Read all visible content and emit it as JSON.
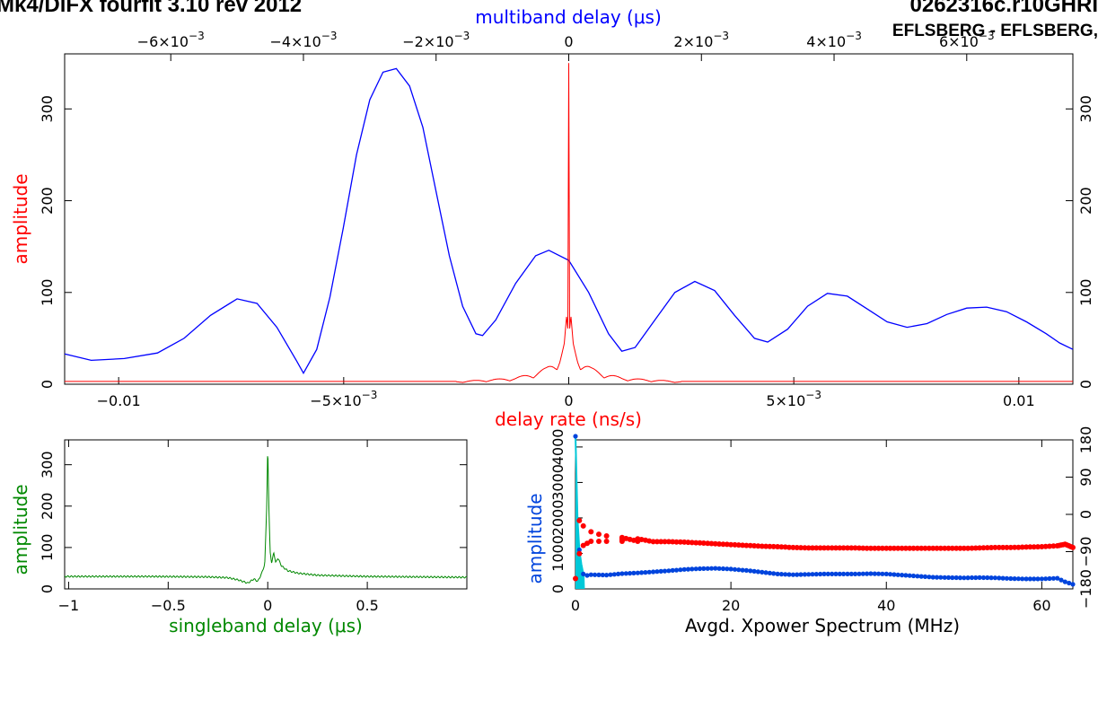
{
  "header": {
    "left_title": "Mk4/DiFX fourfit 3.10 rev 2012",
    "right_title": "0262316c.r10GHRI",
    "right_subtitle": "EFLSBERG - EFLSBERG,"
  },
  "colors": {
    "rate": "#ff0000",
    "mbd": "#0000ff",
    "sbd": "#008800",
    "xpower_amp": "#0044dd",
    "xpower_amp_fill": "#00c8d8",
    "xpower_phase": "#ff0000",
    "axis": "#000000"
  },
  "chart_data": [
    {
      "id": "delay_rate_multiband",
      "type": "line",
      "xlabel": "delay rate (ns/s)",
      "x2label": "multiband delay (μs)",
      "ylabel": "amplitude",
      "xlim": [
        -0.0112,
        0.0112
      ],
      "x2lim": [
        -0.0076,
        0.0076
      ],
      "ylim": [
        0,
        360
      ],
      "x_ticks": [
        {
          "v": -0.01,
          "label": "−0.01"
        },
        {
          "v": -0.005,
          "label": "−5×10",
          "sup": "−3"
        },
        {
          "v": 0,
          "label": "0"
        },
        {
          "v": 0.005,
          "label": "5×10",
          "sup": "−3"
        },
        {
          "v": 0.01,
          "label": "0.01"
        }
      ],
      "x2_ticks": [
        {
          "v": -0.006,
          "label": "−6×10",
          "sup": "−3"
        },
        {
          "v": -0.004,
          "label": "−4×10",
          "sup": "−3"
        },
        {
          "v": -0.002,
          "label": "−2×10",
          "sup": "−3"
        },
        {
          "v": 0,
          "label": "0"
        },
        {
          "v": 0.002,
          "label": "2×10",
          "sup": "−3"
        },
        {
          "v": 0.004,
          "label": "4×10",
          "sup": "−3"
        },
        {
          "v": 0.006,
          "label": "6×10",
          "sup": "−3"
        }
      ],
      "y_ticks": [
        0,
        100,
        200,
        300
      ],
      "series": [
        {
          "axis": "x2",
          "points": [
            [
              -0.0076,
              33
            ],
            [
              -0.0072,
              26
            ],
            [
              -0.0067,
              28
            ],
            [
              -0.0062,
              34
            ],
            [
              -0.0058,
              50
            ],
            [
              -0.0054,
              75
            ],
            [
              -0.005,
              93
            ],
            [
              -0.0047,
              88
            ],
            [
              -0.0044,
              62
            ],
            [
              -0.0041,
              25
            ],
            [
              -0.004,
              12
            ],
            [
              -0.0038,
              38
            ],
            [
              -0.0036,
              95
            ],
            [
              -0.0034,
              170
            ],
            [
              -0.0032,
              250
            ],
            [
              -0.003,
              310
            ],
            [
              -0.0028,
              340
            ],
            [
              -0.0026,
              344
            ],
            [
              -0.0024,
              325
            ],
            [
              -0.0022,
              280
            ],
            [
              -0.002,
              210
            ],
            [
              -0.0018,
              140
            ],
            [
              -0.0016,
              85
            ],
            [
              -0.0014,
              55
            ],
            [
              -0.0013,
              53
            ],
            [
              -0.0011,
              70
            ],
            [
              -0.0008,
              110
            ],
            [
              -0.0005,
              140
            ],
            [
              -0.0003,
              146
            ],
            [
              0.0,
              135
            ],
            [
              0.0003,
              100
            ],
            [
              0.0006,
              55
            ],
            [
              0.0008,
              36
            ],
            [
              0.001,
              40
            ],
            [
              0.0013,
              70
            ],
            [
              0.0016,
              100
            ],
            [
              0.0019,
              112
            ],
            [
              0.0022,
              102
            ],
            [
              0.0025,
              75
            ],
            [
              0.0028,
              50
            ],
            [
              0.003,
              46
            ],
            [
              0.0033,
              60
            ],
            [
              0.0036,
              85
            ],
            [
              0.0039,
              99
            ],
            [
              0.0042,
              96
            ],
            [
              0.0045,
              82
            ],
            [
              0.0048,
              68
            ],
            [
              0.0051,
              62
            ],
            [
              0.0054,
              66
            ],
            [
              0.0057,
              76
            ],
            [
              0.006,
              83
            ],
            [
              0.0063,
              84
            ],
            [
              0.0066,
              79
            ],
            [
              0.0069,
              68
            ],
            [
              0.0072,
              55
            ],
            [
              0.0074,
              45
            ],
            [
              0.0076,
              38
            ]
          ]
        },
        {
          "axis": "x",
          "points": [
            [
              -0.0112,
              3
            ],
            [
              -0.004,
              3
            ],
            [
              -0.0025,
              3
            ],
            [
              -0.0018,
              5
            ],
            [
              -0.0012,
              7
            ],
            [
              -0.0008,
              12
            ],
            [
              -0.0005,
              18
            ],
            [
              -0.0003,
              26
            ],
            [
              -0.0002,
              33
            ],
            [
              -0.0001,
              48
            ],
            [
              -5e-05,
              75
            ],
            [
              -2e-05,
              60
            ],
            [
              0.0,
              350
            ],
            [
              2e-05,
              60
            ],
            [
              5e-05,
              75
            ],
            [
              0.0001,
              48
            ],
            [
              0.0002,
              33
            ],
            [
              0.0003,
              26
            ],
            [
              0.0005,
              18
            ],
            [
              0.0008,
              12
            ],
            [
              0.0012,
              7
            ],
            [
              0.0018,
              5
            ],
            [
              0.0025,
              3
            ],
            [
              0.004,
              3
            ],
            [
              0.0112,
              3
            ]
          ]
        }
      ]
    },
    {
      "id": "singleband_delay",
      "type": "line",
      "xlabel": "singleband delay (μs)",
      "ylabel": "amplitude",
      "xlim": [
        -1.02,
        1.0
      ],
      "ylim": [
        0,
        360
      ],
      "x_ticks": [
        {
          "v": -1,
          "label": "−1"
        },
        {
          "v": -0.5,
          "label": "−0.5"
        },
        {
          "v": 0,
          "label": "0"
        },
        {
          "v": 0.5,
          "label": "0.5"
        }
      ],
      "y_ticks": [
        0,
        100,
        200,
        300
      ],
      "series": [
        {
          "points": [
            [
              -1.02,
              30
            ],
            [
              -0.6,
              30
            ],
            [
              -0.3,
              29
            ],
            [
              -0.2,
              27
            ],
            [
              -0.15,
              22
            ],
            [
              -0.1,
              14
            ],
            [
              -0.07,
              24
            ],
            [
              -0.05,
              18
            ],
            [
              -0.03,
              38
            ],
            [
              -0.015,
              60
            ],
            [
              -0.005,
              200
            ],
            [
              0.0,
              350
            ],
            [
              0.005,
              210
            ],
            [
              0.012,
              90
            ],
            [
              0.02,
              60
            ],
            [
              0.03,
              90
            ],
            [
              0.04,
              62
            ],
            [
              0.05,
              75
            ],
            [
              0.07,
              55
            ],
            [
              0.1,
              44
            ],
            [
              0.15,
              38
            ],
            [
              0.25,
              33
            ],
            [
              0.5,
              30
            ],
            [
              1.0,
              28
            ]
          ]
        }
      ]
    },
    {
      "id": "xpower_spectrum",
      "type": "scatter",
      "xlabel": "Avgd. Xpower Spectrum (MHz)",
      "ylabel": "amplitude",
      "xlim": [
        0,
        64
      ],
      "ylim": [
        0,
        4200
      ],
      "y2lim": [
        -180,
        180
      ],
      "x_ticks": [
        0,
        20,
        40,
        60
      ],
      "y_ticks": [
        0,
        1000,
        2000,
        3000,
        4000
      ],
      "y2_ticks": [
        {
          "v": 180,
          "label": "180"
        },
        {
          "v": 90,
          "label": "90"
        },
        {
          "v": 0,
          "label": "0"
        },
        {
          "v": -90,
          "label": "−90"
        },
        {
          "v": -180,
          "label": "−180"
        }
      ],
      "amplitude": [
        [
          0,
          4300
        ],
        [
          0.25,
          2000
        ],
        [
          0.5,
          1100
        ],
        [
          0.75,
          700
        ],
        [
          1,
          420
        ],
        [
          1.5,
          380
        ],
        [
          2,
          400
        ],
        [
          4,
          390
        ],
        [
          6,
          430
        ],
        [
          8,
          450
        ],
        [
          10,
          480
        ],
        [
          12,
          510
        ],
        [
          14,
          550
        ],
        [
          16,
          570
        ],
        [
          18,
          580
        ],
        [
          20,
          560
        ],
        [
          22,
          520
        ],
        [
          24,
          470
        ],
        [
          26,
          420
        ],
        [
          28,
          400
        ],
        [
          30,
          410
        ],
        [
          32,
          420
        ],
        [
          34,
          420
        ],
        [
          36,
          420
        ],
        [
          38,
          430
        ],
        [
          40,
          420
        ],
        [
          42,
          390
        ],
        [
          44,
          360
        ],
        [
          46,
          330
        ],
        [
          48,
          320
        ],
        [
          50,
          310
        ],
        [
          52,
          320
        ],
        [
          54,
          310
        ],
        [
          56,
          290
        ],
        [
          58,
          280
        ],
        [
          60,
          280
        ],
        [
          62,
          300
        ],
        [
          63,
          200
        ],
        [
          64,
          130
        ]
      ],
      "phase": [
        [
          0,
          -155
        ],
        [
          0.5,
          -95
        ],
        [
          0.5,
          -15
        ],
        [
          1,
          -75
        ],
        [
          1,
          -28
        ],
        [
          1.5,
          -70
        ],
        [
          2,
          -65
        ],
        [
          2,
          -42
        ],
        [
          3,
          -65
        ],
        [
          3,
          -48
        ],
        [
          4,
          -65
        ],
        [
          4,
          -52
        ],
        [
          6,
          -65
        ],
        [
          6,
          -56
        ],
        [
          8,
          -65
        ],
        [
          8,
          -59
        ],
        [
          10,
          -66
        ],
        [
          12,
          -66
        ],
        [
          14,
          -67
        ],
        [
          16,
          -69
        ],
        [
          18,
          -71
        ],
        [
          20,
          -73
        ],
        [
          22,
          -75
        ],
        [
          24,
          -77
        ],
        [
          26,
          -78
        ],
        [
          28,
          -80
        ],
        [
          30,
          -81
        ],
        [
          32,
          -81
        ],
        [
          34,
          -81
        ],
        [
          36,
          -81
        ],
        [
          38,
          -82
        ],
        [
          40,
          -82
        ],
        [
          42,
          -82
        ],
        [
          44,
          -82
        ],
        [
          46,
          -82
        ],
        [
          48,
          -82
        ],
        [
          50,
          -82
        ],
        [
          52,
          -81
        ],
        [
          54,
          -80
        ],
        [
          56,
          -80
        ],
        [
          58,
          -79
        ],
        [
          60,
          -78
        ],
        [
          62,
          -76
        ],
        [
          63,
          -72
        ],
        [
          64,
          -80
        ]
      ]
    }
  ]
}
